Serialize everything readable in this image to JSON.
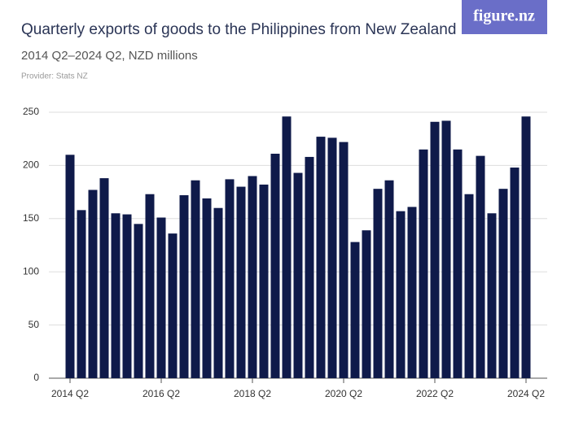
{
  "chart_data": {
    "type": "bar",
    "title": "Quarterly exports of goods to the Philippines from New Zealand",
    "subtitle": "2014 Q2–2024 Q2, NZD millions",
    "provider": "Provider: Stats NZ",
    "logo": "figure.nz",
    "categories": [
      "2014 Q2",
      null,
      null,
      null,
      null,
      null,
      null,
      null,
      "2016 Q2",
      null,
      null,
      null,
      null,
      null,
      null,
      null,
      "2018 Q2",
      null,
      null,
      null,
      null,
      null,
      null,
      null,
      "2020 Q2",
      null,
      null,
      null,
      null,
      null,
      null,
      null,
      "2022 Q2",
      null,
      null,
      null,
      null,
      null,
      null,
      null,
      "2024 Q2"
    ],
    "values": [
      210,
      158,
      177,
      188,
      155,
      154,
      145,
      173,
      151,
      136,
      172,
      186,
      169,
      160,
      187,
      180,
      190,
      182,
      211,
      246,
      193,
      208,
      227,
      226,
      222,
      128,
      139,
      178,
      186,
      157,
      161,
      215,
      241,
      242,
      215,
      173,
      209,
      155,
      178,
      198,
      246
    ],
    "color": "#0f1a4a",
    "ylim": [
      0,
      250
    ],
    "yticks": [
      0,
      50,
      100,
      150,
      200,
      250
    ],
    "grid": true
  }
}
